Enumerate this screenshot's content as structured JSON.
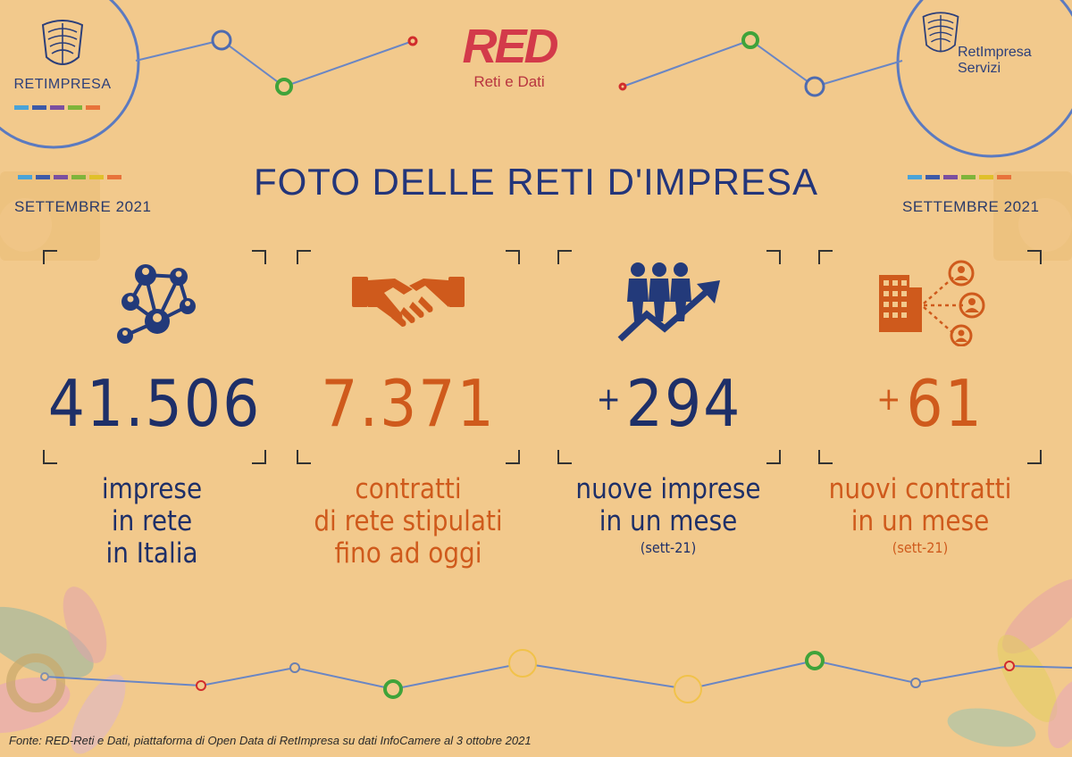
{
  "header": {
    "logo_left": "RETIMPRESA",
    "logo_right_line1": "RetImpresa",
    "logo_right_line2": "Servizi",
    "red_logo": "RED",
    "red_subtitle": "Reti e Dati",
    "date_left": "SETTEMBRE  2021",
    "date_right": "SETTEMBRE  2021",
    "brand_colors": [
      "#4aa3d8",
      "#3d5aa8",
      "#7b4fa0",
      "#7fb43a",
      "#e0c02a",
      "#e8733a"
    ]
  },
  "title": "FOTO DELLE RETI D'IMPRESA",
  "stats": [
    {
      "icon": "network-people-icon",
      "value": "41.506",
      "plus": "",
      "line1": "imprese",
      "line2": "in rete",
      "line3": "in Italia",
      "note": "",
      "color": "#1e2f68"
    },
    {
      "icon": "handshake-icon",
      "value": "7.371",
      "plus": "",
      "line1": "contratti",
      "line2": "di rete stipulati",
      "line3": "fino ad oggi",
      "note": "",
      "color": "#cf5a1c"
    },
    {
      "icon": "people-growth-icon",
      "value": "294",
      "plus": "+",
      "line1": "nuove imprese",
      "line2": "in un mese",
      "line3": "",
      "note": "(sett-21)",
      "color": "#1e2f68"
    },
    {
      "icon": "building-network-icon",
      "value": "61",
      "plus": "+",
      "line1": "nuovi contratti",
      "line2": "in un mese",
      "line3": "",
      "note": "(sett-21)",
      "color": "#cf5a1c"
    }
  ],
  "source": "Fonte: RED-Reti e Dati, piattaforma di Open Data di RetImpresa su dati InfoCamere al 3 ottobre 2021"
}
